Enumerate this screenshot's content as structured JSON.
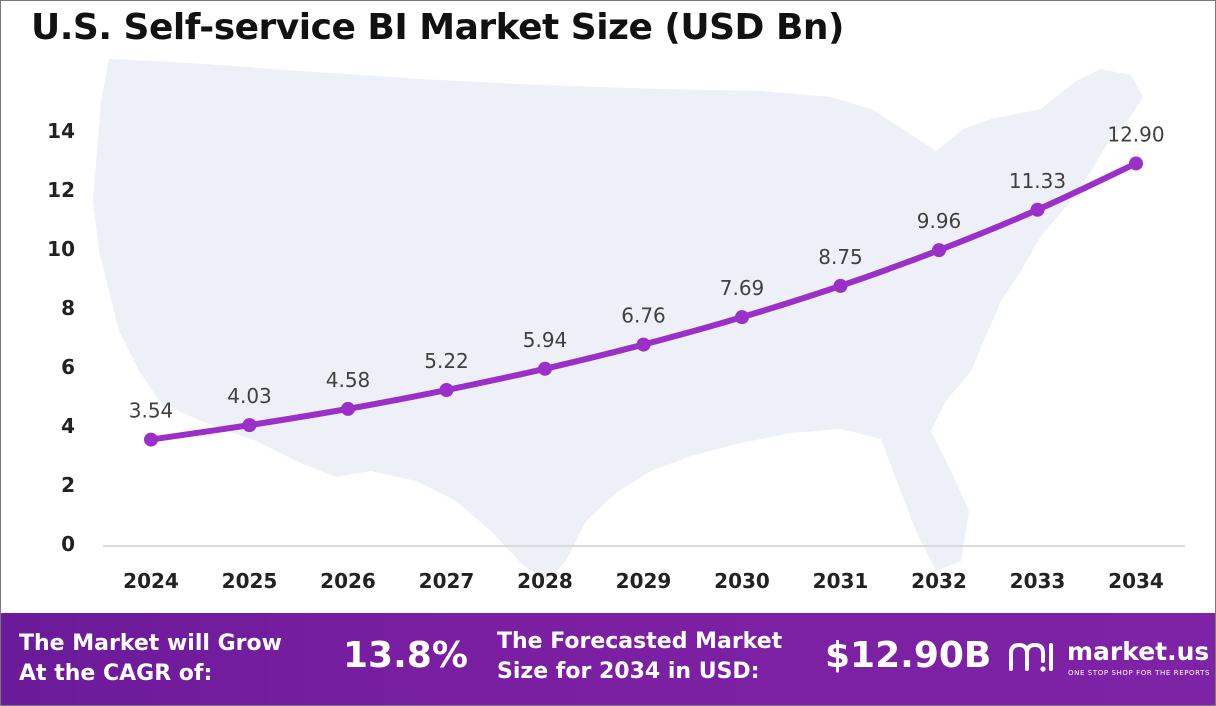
{
  "chart_data": {
    "type": "line",
    "title": "U.S. Self-service BI Market Size (USD Bn)",
    "categories": [
      "2024",
      "2025",
      "2026",
      "2027",
      "2028",
      "2029",
      "2030",
      "2031",
      "2032",
      "2033",
      "2034"
    ],
    "values": [
      3.54,
      4.03,
      4.58,
      5.22,
      5.94,
      6.76,
      7.69,
      8.75,
      9.96,
      11.33,
      12.9
    ],
    "data_labels": [
      "3.54",
      "4.03",
      "4.58",
      "5.22",
      "5.94",
      "6.76",
      "7.69",
      "8.75",
      "9.96",
      "11.33",
      "12.90"
    ],
    "y_ticks": [
      "0",
      "2",
      "4",
      "6",
      "8",
      "10",
      "12",
      "14"
    ],
    "ylim": [
      0,
      14
    ],
    "grid": false,
    "legend": "none",
    "line_color": "#9b30c8",
    "background_shape": "us-map-silhouette"
  },
  "footer": {
    "cagr_text_line1": "The Market will Grow",
    "cagr_text_line2": "At the CAGR of:",
    "cagr_value": "13.8%",
    "forecast_text_line1": "The Forecasted Market",
    "forecast_text_line2": "Size for 2034 in USD:",
    "forecast_value": "$12.90B",
    "brand_name": "market.us",
    "brand_tagline": "ONE STOP SHOP FOR THE REPORTS",
    "brand_icon": "market-us-logo-icon"
  },
  "colors": {
    "footer_bg": "#7b1fa2",
    "line": "#9b30c8",
    "map": "#eef0f8"
  }
}
